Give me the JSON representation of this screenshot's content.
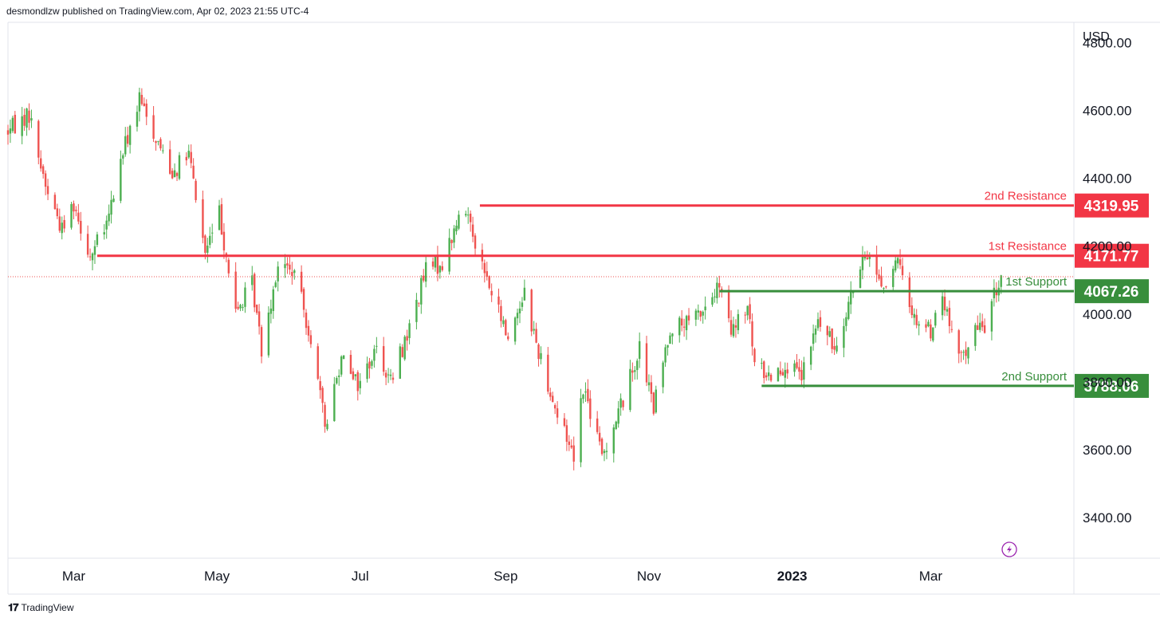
{
  "header": {
    "published_text": "desmondlzw published on TradingView.com, Apr 02, 2023 21:55 UTC-4"
  },
  "footer": {
    "brand": "TradingView",
    "logo_glyph": "𝟏𝟕"
  },
  "colors": {
    "resistance": "#f23645",
    "support": "#388e3c",
    "bull": "#26a69a",
    "bull_alt": "#4caf50",
    "bear": "#ef5350",
    "axis_text": "#131722",
    "grid_border": "#e0e3eb"
  },
  "chart_data": {
    "type": "candlestick",
    "currency": "USD",
    "ylim": [
      3300,
      4880
    ],
    "y_ticks": [
      {
        "value": 4800,
        "label": "4800.00"
      },
      {
        "value": 4600,
        "label": "4600.00"
      },
      {
        "value": 4400,
        "label": "4400.00"
      },
      {
        "value": 4200,
        "label": "4200.00"
      },
      {
        "value": 4000,
        "label": "4000.00"
      },
      {
        "value": 3800,
        "label": "3800.00"
      },
      {
        "value": 3600,
        "label": "3600.00"
      },
      {
        "value": 3400,
        "label": "3400.00"
      }
    ],
    "x_ticks": [
      {
        "date": "2022-03-01",
        "label": "Mar",
        "bold": false
      },
      {
        "date": "2022-05-01",
        "label": "May",
        "bold": false
      },
      {
        "date": "2022-07-01",
        "label": "Jul",
        "bold": false
      },
      {
        "date": "2022-09-01",
        "label": "Sep",
        "bold": false
      },
      {
        "date": "2022-11-01",
        "label": "Nov",
        "bold": false
      },
      {
        "date": "2023-01-01",
        "label": "2023",
        "bold": true
      },
      {
        "date": "2023-03-01",
        "label": "Mar",
        "bold": false
      }
    ],
    "xlim": [
      "2022-02-01",
      "2023-05-01"
    ],
    "series_path": [
      [
        "2022-02-01",
        4540
      ],
      [
        "2022-02-10",
        4590
      ],
      [
        "2022-02-17",
        4380
      ],
      [
        "2022-02-24",
        4250
      ],
      [
        "2022-03-01",
        4330
      ],
      [
        "2022-03-08",
        4170
      ],
      [
        "2022-03-15",
        4260
      ],
      [
        "2022-03-22",
        4480
      ],
      [
        "2022-03-29",
        4630
      ],
      [
        "2022-04-05",
        4520
      ],
      [
        "2022-04-12",
        4420
      ],
      [
        "2022-04-19",
        4470
      ],
      [
        "2022-04-26",
        4180
      ],
      [
        "2022-05-02",
        4300
      ],
      [
        "2022-05-09",
        4000
      ],
      [
        "2022-05-16",
        4090
      ],
      [
        "2022-05-20",
        3900
      ],
      [
        "2022-05-27",
        4150
      ],
      [
        "2022-06-03",
        4120
      ],
      [
        "2022-06-10",
        3930
      ],
      [
        "2022-06-16",
        3670
      ],
      [
        "2022-06-24",
        3900
      ],
      [
        "2022-06-30",
        3790
      ],
      [
        "2022-07-08",
        3900
      ],
      [
        "2022-07-14",
        3800
      ],
      [
        "2022-07-22",
        3960
      ],
      [
        "2022-07-29",
        4130
      ],
      [
        "2022-08-05",
        4150
      ],
      [
        "2022-08-12",
        4280
      ],
      [
        "2022-08-16",
        4300
      ],
      [
        "2022-08-22",
        4140
      ],
      [
        "2022-08-26",
        4060
      ],
      [
        "2022-09-02",
        3930
      ],
      [
        "2022-09-09",
        4070
      ],
      [
        "2022-09-13",
        3940
      ],
      [
        "2022-09-23",
        3700
      ],
      [
        "2022-09-30",
        3590
      ],
      [
        "2022-10-04",
        3790
      ],
      [
        "2022-10-12",
        3580
      ],
      [
        "2022-10-21",
        3750
      ],
      [
        "2022-10-28",
        3900
      ],
      [
        "2022-11-03",
        3720
      ],
      [
        "2022-11-10",
        3960
      ],
      [
        "2022-11-18",
        3970
      ],
      [
        "2022-11-25",
        4020
      ],
      [
        "2022-12-01",
        4080
      ],
      [
        "2022-12-06",
        3940
      ],
      [
        "2022-12-13",
        4020
      ],
      [
        "2022-12-16",
        3850
      ],
      [
        "2022-12-22",
        3820
      ],
      [
        "2022-12-29",
        3850
      ],
      [
        "2023-01-05",
        3810
      ],
      [
        "2023-01-12",
        3980
      ],
      [
        "2023-01-19",
        3900
      ],
      [
        "2023-01-26",
        4060
      ],
      [
        "2023-02-02",
        4180
      ],
      [
        "2023-02-09",
        4080
      ],
      [
        "2023-02-15",
        4150
      ],
      [
        "2023-02-22",
        3990
      ],
      [
        "2023-03-01",
        3950
      ],
      [
        "2023-03-06",
        4050
      ],
      [
        "2023-03-13",
        3860
      ],
      [
        "2023-03-20",
        3950
      ],
      [
        "2023-03-24",
        3970
      ],
      [
        "2023-03-31",
        4110
      ]
    ],
    "current_price": 4110,
    "levels": [
      {
        "name": "2nd Resistance",
        "value": 4319.95,
        "label": "4319.95",
        "kind": "resistance",
        "start": "2022-08-21"
      },
      {
        "name": "1st Resistance",
        "value": 4171.77,
        "label": "4171.77",
        "kind": "resistance",
        "start": "2022-03-11"
      },
      {
        "name": "1st Support",
        "value": 4067.26,
        "label": "4067.26",
        "kind": "support",
        "start": "2022-12-01"
      },
      {
        "name": "2nd Support",
        "value": 3788.06,
        "label": "3788.06",
        "kind": "support",
        "start": "2022-12-19"
      }
    ],
    "grid": false,
    "legend": "none"
  }
}
